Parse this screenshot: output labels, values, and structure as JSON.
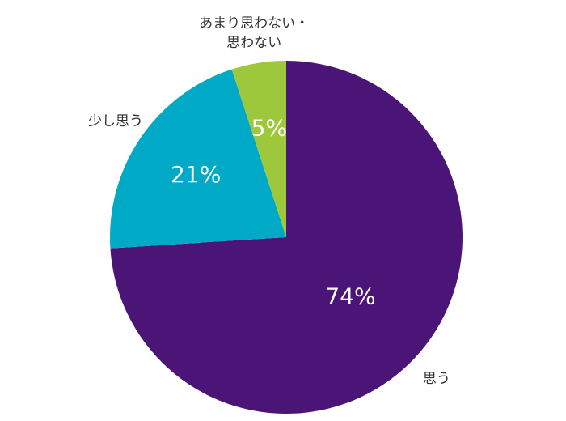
{
  "chart_data": {
    "type": "pie",
    "categories": [
      "思う",
      "少し思う",
      "あまり思わない・思わない"
    ],
    "values": [
      74,
      21,
      5
    ],
    "value_labels": [
      "74%",
      "21%",
      "5%"
    ],
    "colors": [
      "#4a1577",
      "#00a9c6",
      "#9dc83c"
    ]
  }
}
